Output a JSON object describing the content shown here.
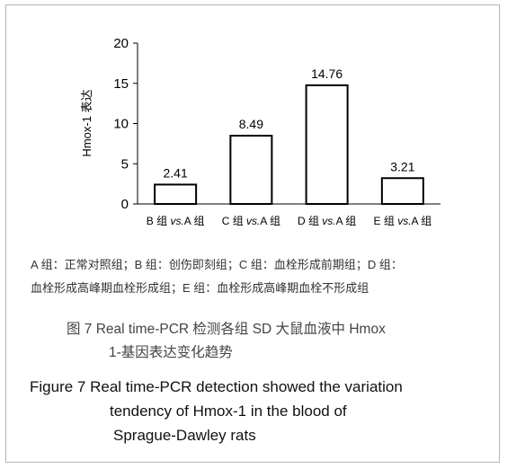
{
  "chart_data": {
    "type": "bar",
    "ylabel": "Hmox-1 表达",
    "ylim": [
      0,
      20
    ],
    "yticks": [
      0,
      5,
      10,
      15,
      20
    ],
    "categories": [
      {
        "prefix": "B 组 ",
        "italic": "vs.",
        "suffix": "A 组"
      },
      {
        "prefix": "C 组 ",
        "italic": "vs.",
        "suffix": "A 组"
      },
      {
        "prefix": "D 组 ",
        "italic": "vs.",
        "suffix": "A 组"
      },
      {
        "prefix": "E 组 ",
        "italic": "vs.",
        "suffix": "A 组"
      }
    ],
    "values": [
      2.41,
      8.49,
      14.76,
      3.21
    ],
    "value_labels": [
      "2.41",
      "8.49",
      "14.76",
      "3.21"
    ],
    "grid": false,
    "bar_fill": "#ffffff",
    "bar_stroke": "#000000"
  },
  "note": {
    "line1": "A 组：正常对照组；B 组：创伤即刻组；C 组：血栓形成前期组；D 组：",
    "line2": "血栓形成高峰期血栓形成组；E 组：血栓形成高峰期血栓不形成组"
  },
  "caption_cn": {
    "line1": "图 7    Real time-PCR 检测各组 SD 大鼠血液中 Hmox",
    "line2": "1-基因表达变化趋势"
  },
  "caption_en": {
    "line1": "Figure 7    Real time-PCR detection showed the variation",
    "line2": "tendency of Hmox-1 in the blood of",
    "line3": "Sprague-Dawley rats"
  }
}
